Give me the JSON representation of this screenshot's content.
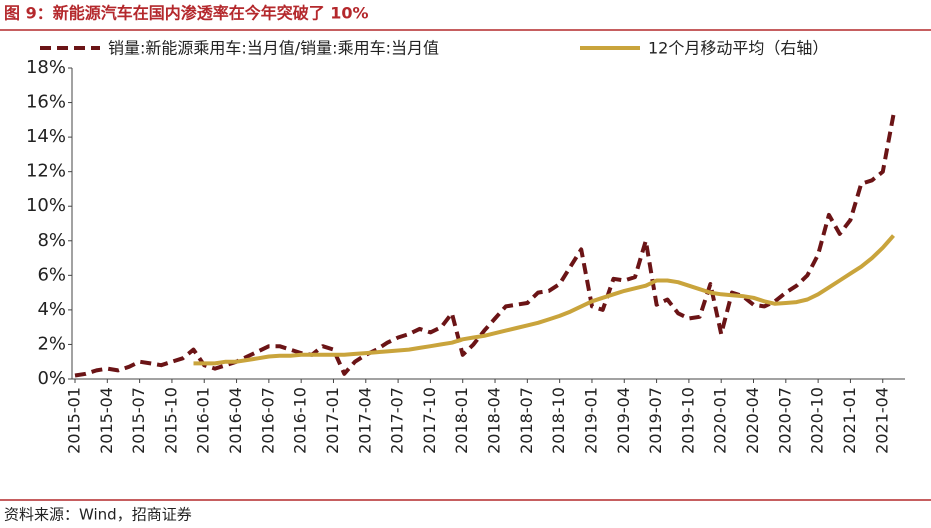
{
  "chart_data": {
    "type": "line",
    "title": "图 9：新能源汽车在国内渗透率在今年突破了 10%",
    "source": "资料来源：Wind，招商证券",
    "categories": [
      "2015-01",
      null,
      null,
      "2015-04",
      null,
      null,
      "2015-07",
      null,
      null,
      "2015-10",
      null,
      null,
      "2016-01",
      null,
      null,
      "2016-04",
      null,
      null,
      "2016-07",
      null,
      null,
      "2016-10",
      null,
      null,
      "2017-01",
      null,
      null,
      "2017-04",
      null,
      null,
      "2017-07",
      null,
      null,
      "2017-10",
      null,
      null,
      "2018-01",
      null,
      null,
      "2018-04",
      null,
      null,
      "2018-07",
      null,
      null,
      "2018-10",
      null,
      null,
      "2019-01",
      null,
      null,
      "2019-04",
      null,
      null,
      "2019-07",
      null,
      null,
      "2019-10",
      null,
      null,
      "2020-01",
      null,
      null,
      "2020-04",
      null,
      null,
      "2020-07",
      null,
      null,
      "2020-10",
      null,
      null,
      "2021-01",
      null,
      null,
      "2021-04",
      null
    ],
    "series": [
      {
        "name": "销量:新能源乘用车:当月值/销量:乘用车:当月值",
        "color": "#6b1416",
        "dash": true,
        "values": [
          0.2,
          0.3,
          0.5,
          0.6,
          0.5,
          0.7,
          1.0,
          0.9,
          0.8,
          1.0,
          1.2,
          1.7,
          0.8,
          0.6,
          0.8,
          1.0,
          1.3,
          1.6,
          1.9,
          1.9,
          1.7,
          1.5,
          1.4,
          1.9,
          1.7,
          0.3,
          1.0,
          1.4,
          1.7,
          2.1,
          2.4,
          2.6,
          2.9,
          2.7,
          3.0,
          3.8,
          1.4,
          2.0,
          2.8,
          3.5,
          4.2,
          4.3,
          4.4,
          5.0,
          5.1,
          5.5,
          6.5,
          7.5,
          4.2,
          4.0,
          5.8,
          5.7,
          5.9,
          8.0,
          4.3,
          4.6,
          3.8,
          3.5,
          3.6,
          5.5,
          2.6,
          5.0,
          4.8,
          4.3,
          4.2,
          4.5,
          5.0,
          5.4,
          6.0,
          7.2,
          9.5,
          8.4,
          9.2,
          11.3,
          11.5,
          12.0,
          15.3
        ]
      },
      {
        "name": "12个月移动平均（右轴）",
        "color": "#c9a43c",
        "dash": false,
        "values": [
          null,
          null,
          null,
          null,
          null,
          null,
          null,
          null,
          null,
          null,
          null,
          0.9,
          0.9,
          0.9,
          1.0,
          1.0,
          1.1,
          1.2,
          1.3,
          1.35,
          1.35,
          1.4,
          1.4,
          1.4,
          1.4,
          1.4,
          1.45,
          1.5,
          1.55,
          1.6,
          1.65,
          1.7,
          1.8,
          1.9,
          2.0,
          2.1,
          2.3,
          2.4,
          2.5,
          2.65,
          2.8,
          2.95,
          3.1,
          3.25,
          3.45,
          3.65,
          3.9,
          4.2,
          4.5,
          4.7,
          4.9,
          5.1,
          5.25,
          5.4,
          5.7,
          5.7,
          5.6,
          5.4,
          5.2,
          5.0,
          4.9,
          4.85,
          4.8,
          4.7,
          4.5,
          4.35,
          4.4,
          4.45,
          4.6,
          4.9,
          5.3,
          5.7,
          6.1,
          6.5,
          7.0,
          7.6,
          8.3
        ]
      }
    ],
    "ylim": [
      0,
      18
    ],
    "yticks": [
      {
        "value": 0,
        "label": "0%"
      },
      {
        "value": 2,
        "label": "2%"
      },
      {
        "value": 4,
        "label": "4%"
      },
      {
        "value": 6,
        "label": "6%"
      },
      {
        "value": 8,
        "label": "8%"
      },
      {
        "value": 10,
        "label": "10%"
      },
      {
        "value": 12,
        "label": "12%"
      },
      {
        "value": 14,
        "label": "14%"
      },
      {
        "value": 16,
        "label": "16%"
      },
      {
        "value": 18,
        "label": "18%"
      }
    ],
    "grid": false,
    "legend": "top"
  }
}
